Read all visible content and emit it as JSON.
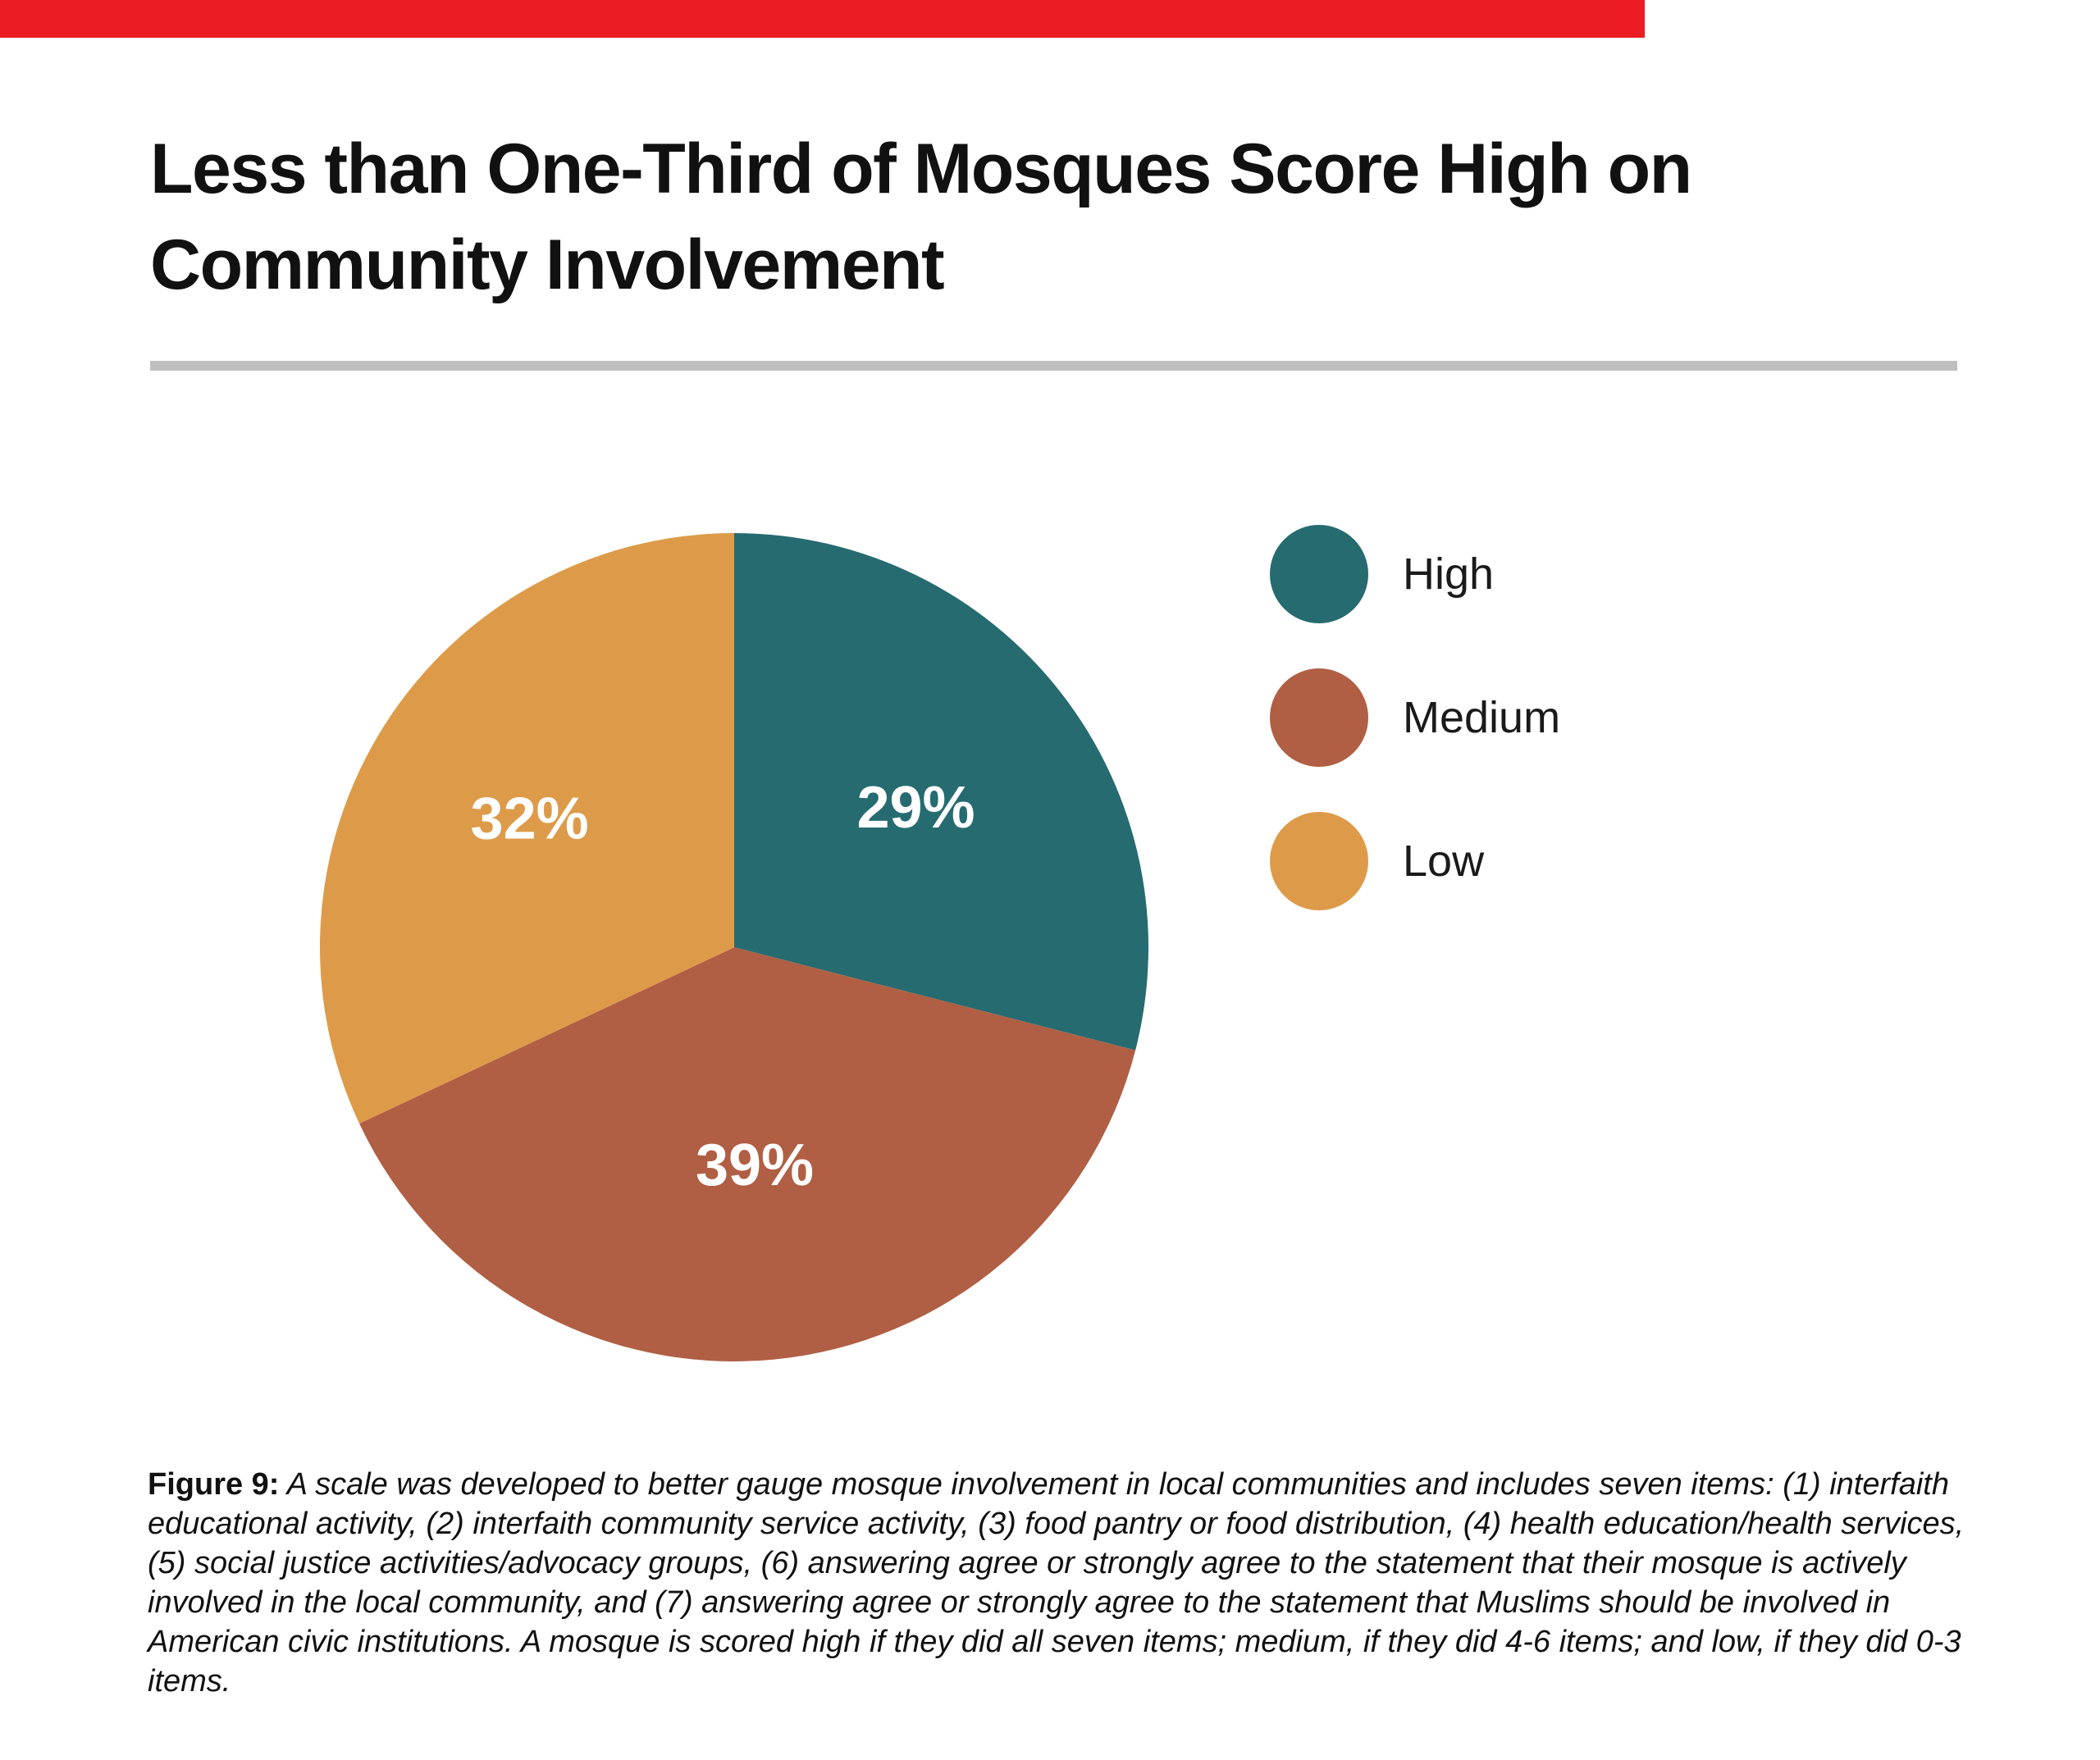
{
  "title": {
    "line1": "Less than One-Third of Mosques Score High on",
    "line2": "Community Involvement"
  },
  "caption": {
    "label": "Figure 9:",
    "text": " A scale was developed to better gauge mosque involvement in local communities and includes seven items: (1) interfaith educational activity, (2) interfaith community service activity, (3) food pantry or food distribution, (4) health education/health services, (5) social justice activities/advocacy groups, (6) answering agree or strongly agree to the statement that their mosque is actively involved in the local community, and (7) answering agree or strongly agree to the statement that Muslims should be involved in American civic institutions. A mosque is scored high if they did all seven items; medium, if they did 4-6 items; and low, if they did 0-3 items."
  },
  "legend": {
    "items": [
      {
        "label": "High"
      },
      {
        "label": "Medium"
      },
      {
        "label": "Low"
      }
    ]
  },
  "colors": {
    "accent_bar": "#EC1C24",
    "divider": "#BFBFBF",
    "slice_label_text": "#FFFFFF",
    "text": "#111111"
  },
  "chart_data": {
    "type": "pie",
    "title": "Less than One-Third of Mosques Score High on Community Involvement",
    "categories": [
      "High",
      "Medium",
      "Low"
    ],
    "values": [
      29,
      39,
      32
    ],
    "unit": "%",
    "colors": [
      "#266B70",
      "#B05F44",
      "#DD9B4A"
    ],
    "slice_labels": [
      "29%",
      "39%",
      "32%"
    ],
    "start_angle": "12 o'clock, clockwise",
    "legend_position": "right",
    "data_labels": "inside, white, bold"
  }
}
